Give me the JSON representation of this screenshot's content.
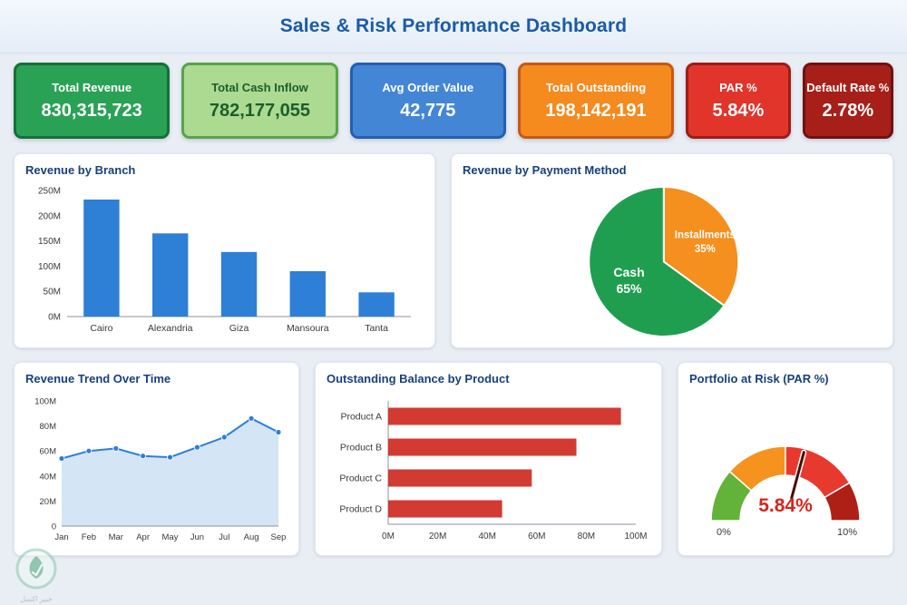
{
  "page": {
    "title": "Sales & Risk Performance Dashboard",
    "title_color": "#1a5ba6",
    "background": "#e9edf4"
  },
  "kpis": [
    {
      "label": "Total Revenue",
      "value": "830,315,723",
      "bg": "#2aa255",
      "border": "#157038",
      "text": "#ffffff"
    },
    {
      "label": "Total Cash Inflow",
      "value": "782,177,055",
      "bg": "#abda90",
      "border": "#58a34b",
      "text": "#1c5e2d"
    },
    {
      "label": "Avg Order Value",
      "value": "42,775",
      "bg": "#4486d6",
      "border": "#2360ae",
      "text": "#ffffff"
    },
    {
      "label": "Total Outstanding",
      "value": "198,142,191",
      "bg": "#f58a1f",
      "border": "#c85815",
      "text": "#ffffff"
    },
    {
      "label": "PAR %",
      "value": "5.84%",
      "bg": "#e1352b",
      "border": "#9e1d16",
      "text": "#ffffff"
    },
    {
      "label": "Default Rate %",
      "value": "2.78%",
      "bg": "#a62019",
      "border": "#6e1210",
      "text": "#ffffff"
    }
  ],
  "chart_data": [
    {
      "type": "bar",
      "title": "Revenue by Branch",
      "categories": [
        "Cairo",
        "Alexandria",
        "Giza",
        "Mansoura",
        "Tanta"
      ],
      "values": [
        232,
        165,
        128,
        90,
        48
      ],
      "unit": "M",
      "ylim": [
        0,
        250
      ],
      "yticks": [
        0,
        50,
        100,
        150,
        200,
        250
      ],
      "ytick_labels": [
        "0M",
        "50M",
        "100M",
        "150M",
        "200M",
        "250M"
      ],
      "bar_color": "#2e7fd6",
      "grid": false,
      "legend": "none"
    },
    {
      "type": "pie",
      "title": "Revenue by Payment Method",
      "labels": [
        "Cash",
        "Installments"
      ],
      "values": [
        65,
        35
      ],
      "value_labels": [
        "65%",
        "35%"
      ],
      "colors": [
        "#1f9e50",
        "#f58f1e"
      ],
      "start": "top",
      "direction": "clockwise",
      "label_position": "inside",
      "label_color": "#ffffff"
    },
    {
      "type": "area",
      "title": "Revenue Trend Over Time",
      "x": [
        "Jan",
        "Feb",
        "Mar",
        "Apr",
        "May",
        "Jun",
        "Jul",
        "Aug",
        "Sep"
      ],
      "values": [
        54,
        60,
        62,
        56,
        55,
        63,
        71,
        86,
        75
      ],
      "unit": "M",
      "ylim": [
        0,
        100
      ],
      "yticks": [
        0,
        20,
        40,
        60,
        80,
        100
      ],
      "ytick_labels": [
        "0",
        "20M",
        "40M",
        "60M",
        "80M",
        "100M"
      ],
      "line_color": "#2e7fd6",
      "fill_color": "#cde0f4",
      "grid": false
    },
    {
      "type": "hbar",
      "title": "Outstanding Balance by Product",
      "categories": [
        "Product A",
        "Product B",
        "Product C",
        "Product D"
      ],
      "values": [
        94,
        76,
        58,
        46
      ],
      "unit": "M",
      "xlim": [
        0,
        100
      ],
      "xticks": [
        0,
        20,
        40,
        60,
        80,
        100
      ],
      "xtick_labels": [
        "0M",
        "20M",
        "40M",
        "60M",
        "80M",
        "100M"
      ],
      "bar_color": "#d23a32",
      "grid": false
    },
    {
      "type": "gauge",
      "title": "Portfolio at Risk (PAR %)",
      "value": 5.84,
      "display_value": "5.84%",
      "min": 0,
      "max": 10,
      "min_label": "0%",
      "max_label": "10%",
      "value_color": "#d6251c",
      "needle_color": "#4a0c08",
      "segments": [
        {
          "from": 0,
          "to": 2.3,
          "color": "#63b23a"
        },
        {
          "from": 2.3,
          "to": 5,
          "color": "#f6921e"
        },
        {
          "from": 5,
          "to": 8.3,
          "color": "#e8392e"
        },
        {
          "from": 8.3,
          "to": 10,
          "color": "#ae1f16"
        }
      ]
    }
  ],
  "watermark": {
    "icon": "leaf-logo-icon",
    "text": "خبير اكسل"
  }
}
